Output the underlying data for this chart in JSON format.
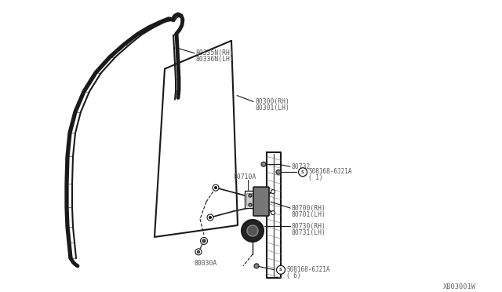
{
  "bg_color": "#ffffff",
  "line_color": "#1a1a1a",
  "text_color": "#333333",
  "gray_text": "#555555",
  "diagram_code": "XB03001W",
  "parts": {
    "ws_rh": "80335N(RH)",
    "ws_lh": "80336N(LH)",
    "glass_rh": "80300(RH)",
    "glass_lh": "80301(LH)",
    "bracket": "80710A",
    "reg_rh": "80700(RH)",
    "reg_lh": "80701(LH)",
    "motor_rh": "80730(RH)",
    "motor_lh": "80731(LH)",
    "bolt_top_id": "S08168-6J21A",
    "bolt_top_qty": "( 1)",
    "bolt_bot_id": "S08168-6J21A",
    "bolt_bot_qty": "( 6)",
    "screw": "80732",
    "stopper": "80030A"
  }
}
